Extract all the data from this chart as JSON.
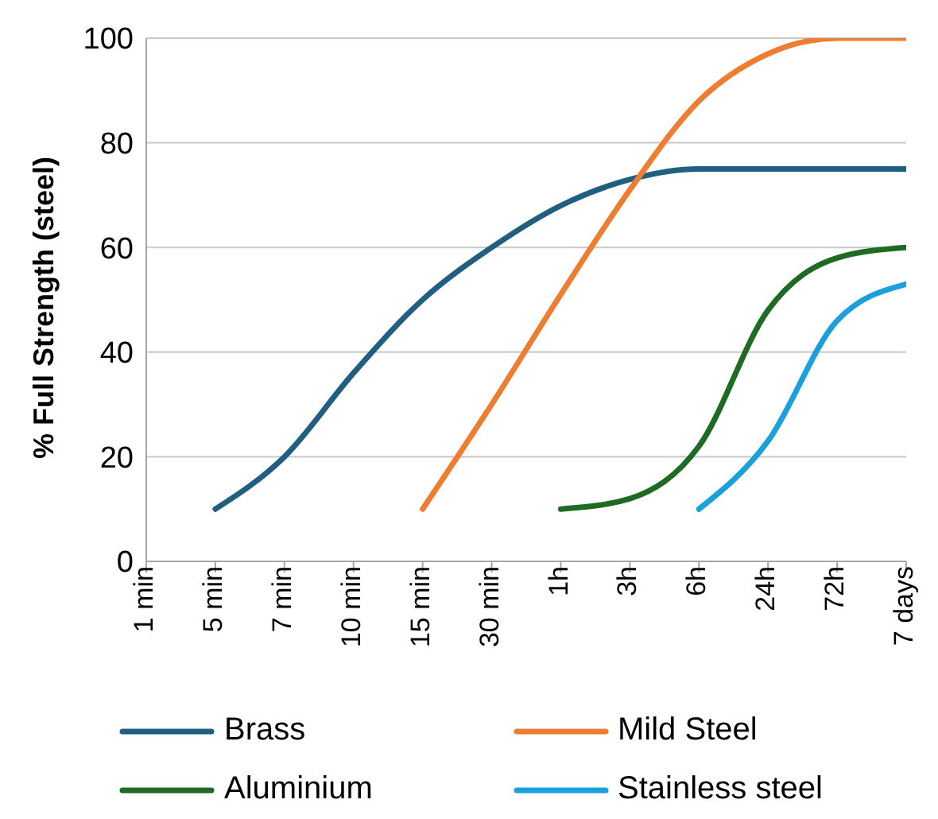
{
  "chart_data": {
    "type": "line",
    "ylabel": "% Full Strength (steel)",
    "categories": [
      "1 min",
      "5 min",
      "7 min",
      "10 min",
      "15 min",
      "30 min",
      "1h",
      "3h",
      "6h",
      "24h",
      "72h",
      "7 days"
    ],
    "series": [
      {
        "name": "Brass",
        "color": "#215f80",
        "values": [
          null,
          10,
          20,
          36,
          50,
          60,
          68,
          73,
          75,
          75,
          75,
          75
        ]
      },
      {
        "name": "Mild Steel",
        "color": "#ed7d31",
        "values": [
          null,
          null,
          null,
          null,
          10,
          30,
          51,
          71,
          88,
          97,
          100,
          100
        ]
      },
      {
        "name": "Aluminium",
        "color": "#1e6b24",
        "values": [
          null,
          null,
          null,
          null,
          null,
          null,
          10,
          12,
          22,
          48,
          58,
          60
        ]
      },
      {
        "name": "Stainless steel",
        "color": "#1aa1dc",
        "values": [
          null,
          null,
          null,
          null,
          null,
          null,
          null,
          null,
          10,
          23,
          46,
          53
        ]
      }
    ],
    "ylim": [
      0,
      100
    ],
    "yticks": [
      0,
      20,
      40,
      60,
      80,
      100
    ],
    "grid": "y",
    "legend": "bottom",
    "marker": "none",
    "line_style": "solid"
  }
}
